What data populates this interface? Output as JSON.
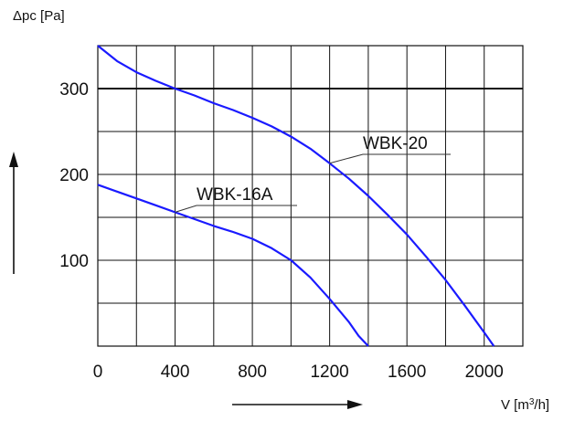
{
  "chart_data": {
    "type": "line",
    "ylabel": "Δpc [Pa]",
    "xlabel_prefix": "V [m",
    "xlabel_sup": "3",
    "xlabel_suffix": "/h]",
    "xlim": [
      0,
      2200
    ],
    "ylim": [
      0,
      350
    ],
    "x_ticks": [
      0,
      400,
      800,
      1200,
      1600,
      2000
    ],
    "x_tick_labels": [
      "0",
      "400",
      "800",
      "1200",
      "1600",
      "2000"
    ],
    "y_ticks": [
      100,
      200,
      300
    ],
    "y_tick_labels": [
      "100",
      "200",
      "300"
    ],
    "grid": true,
    "series": [
      {
        "name": "WBK-20",
        "color": "#1a1aff",
        "points": [
          [
            0,
            350
          ],
          [
            100,
            332
          ],
          [
            200,
            319
          ],
          [
            300,
            309
          ],
          [
            400,
            300
          ],
          [
            500,
            292
          ],
          [
            600,
            283
          ],
          [
            700,
            275
          ],
          [
            800,
            266
          ],
          [
            900,
            256
          ],
          [
            1000,
            244
          ],
          [
            1100,
            230
          ],
          [
            1200,
            213
          ],
          [
            1300,
            195
          ],
          [
            1400,
            175
          ],
          [
            1500,
            153
          ],
          [
            1600,
            130
          ],
          [
            1700,
            104
          ],
          [
            1800,
            77
          ],
          [
            1900,
            47
          ],
          [
            2000,
            16
          ],
          [
            2050,
            0
          ]
        ]
      },
      {
        "name": "WBK-16A",
        "color": "#1a1aff",
        "points": [
          [
            0,
            188
          ],
          [
            100,
            180
          ],
          [
            200,
            172
          ],
          [
            300,
            164
          ],
          [
            400,
            156
          ],
          [
            500,
            148
          ],
          [
            600,
            140
          ],
          [
            700,
            133
          ],
          [
            800,
            125
          ],
          [
            900,
            114
          ],
          [
            1000,
            100
          ],
          [
            1100,
            80
          ],
          [
            1200,
            55
          ],
          [
            1300,
            28
          ],
          [
            1350,
            12
          ],
          [
            1400,
            0
          ]
        ]
      }
    ],
    "annotations": [
      {
        "text": "WBK-20",
        "x": 1200,
        "y": 213
      },
      {
        "text": "WBK-16A",
        "x": 400,
        "y": 156
      }
    ]
  }
}
